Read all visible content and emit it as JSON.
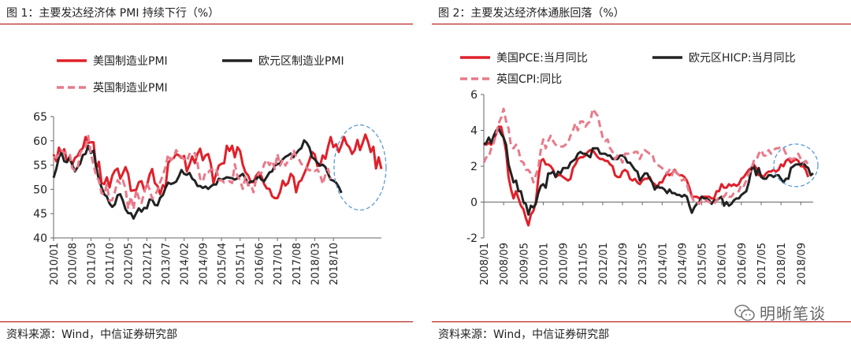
{
  "left": {
    "title": "图 1：主要发达经济体 PMI 持续下行（%）",
    "source": "资料来源：Wind，中信证券研究部"
  },
  "right": {
    "title": "图 2：主要发达经济体通胀回落（%）",
    "source": "资料来源：Wind，中信证券研究部"
  },
  "watermark": {
    "text": "明晰笔谈",
    "icon": "wechat-icon"
  },
  "chart_data": [
    {
      "type": "line",
      "title": "图 1：主要发达经济体 PMI 持续下行（%）",
      "xlabel": "",
      "ylabel": "",
      "ylim": [
        40,
        65
      ],
      "yticks": [
        40,
        45,
        50,
        55,
        60,
        65
      ],
      "x_start": "2010/01",
      "xticks": [
        "2010/01",
        "2010/08",
        "2011/03",
        "2011/10",
        "2012/05",
        "2012/12",
        "2013/07",
        "2014/02",
        "2014/09",
        "2015/04",
        "2015/11",
        "2016/06",
        "2017/01",
        "2017/08",
        "2018/03",
        "2018/10"
      ],
      "legend_position": "top",
      "grid": false,
      "highlight": "dashed ellipse around 2018 segment",
      "series": [
        {
          "name": "美国制造业PMI",
          "color": "#e0202a",
          "style": "solid",
          "values": [
            57.2,
            55.8,
            58.6,
            57.2,
            58.3,
            55.8,
            56.2,
            55.1,
            56.5,
            56.9,
            58.0,
            58.5,
            60.8,
            59.6,
            59.7,
            59.7,
            54.2,
            55.7,
            51.3,
            51.1,
            52.5,
            50.4,
            52.8,
            53.9,
            54.3,
            52.2,
            53.3,
            54.6,
            53.2,
            49.7,
            49.8,
            49.9,
            51.5,
            51.7,
            49.9,
            50.7,
            53.0,
            54.2,
            51.3,
            50.7,
            49.0,
            50.9,
            50.3,
            55.4,
            56.2,
            56.4,
            57.3,
            57.0,
            56.5,
            56.9,
            53.7,
            55.1,
            56.8,
            55.4,
            57.3,
            58.4,
            56.0,
            57.0,
            57.3,
            55.3,
            51.3,
            53.2,
            54.9,
            55.3,
            55.4,
            59.0,
            57.9,
            59.0,
            56.6,
            58.7,
            57.9,
            55.1,
            53.5,
            52.9,
            51.5,
            51.5,
            52.8,
            53.5,
            52.7,
            51.1,
            50.2,
            50.1,
            48.6,
            48.2,
            48.2,
            49.5,
            51.8,
            50.8,
            51.3,
            53.2,
            52.6,
            49.4,
            51.5,
            51.9,
            53.2,
            54.5,
            56.0,
            57.7,
            57.2,
            54.8,
            54.9,
            57.0,
            56.3,
            58.8,
            60.8,
            58.7,
            59.3,
            57.7,
            59.1,
            60.8,
            59.3,
            58.7,
            57.3,
            58.1,
            60.2,
            58.1,
            59.6,
            61.3,
            59.8,
            57.7,
            58.8,
            54.3,
            56.6,
            54.2
          ]
        },
        {
          "name": "欧元区制造业PMI",
          "color": "#222222",
          "style": "solid",
          "values": [
            52.4,
            54.2,
            56.6,
            57.6,
            55.8,
            55.6,
            56.7,
            55.1,
            53.7,
            54.6,
            55.3,
            57.1,
            57.3,
            59.0,
            57.5,
            58.0,
            54.6,
            52.0,
            50.4,
            49.0,
            48.5,
            47.1,
            46.4,
            46.9,
            48.8,
            49.0,
            47.7,
            45.9,
            45.1,
            45.1,
            44.0,
            45.1,
            46.1,
            45.4,
            46.2,
            46.1,
            47.9,
            47.9,
            46.8,
            46.7,
            48.3,
            48.8,
            50.3,
            51.4,
            51.1,
            51.3,
            51.6,
            52.7,
            54.0,
            53.2,
            53.0,
            53.4,
            52.2,
            51.8,
            50.7,
            50.7,
            50.3,
            50.6,
            50.1,
            50.6,
            51.0,
            51.0,
            52.2,
            52.0,
            52.2,
            52.5,
            52.4,
            52.3,
            52.0,
            52.3,
            52.8,
            53.2,
            52.3,
            51.2,
            51.6,
            51.7,
            52.0,
            52.8,
            52.0,
            51.7,
            52.6,
            53.5,
            53.7,
            54.9,
            55.2,
            55.4,
            56.2,
            56.7,
            57.0,
            57.4,
            56.6,
            57.4,
            58.1,
            58.5,
            60.1,
            59.6,
            58.6,
            56.6,
            56.2,
            55.5,
            54.9,
            55.1,
            54.6,
            53.2,
            52.0,
            51.8,
            51.4,
            50.5,
            49.3
          ]
        },
        {
          "name": "英国制造业PMI",
          "color": "#e87a8a",
          "style": "dashed",
          "values": [
            56.7,
            56.5,
            57.2,
            58.0,
            57.5,
            57.6,
            57.5,
            54.4,
            53.9,
            54.3,
            57.5,
            58.3,
            58.8,
            61.0,
            57.3,
            55.1,
            52.8,
            51.8,
            49.2,
            49.0,
            51.0,
            47.7,
            47.8,
            49.5,
            51.9,
            51.2,
            51.9,
            50.2,
            46.0,
            48.5,
            45.9,
            49.9,
            48.2,
            47.2,
            49.3,
            51.4,
            50.0,
            48.1,
            48.8,
            49.8,
            51.5,
            52.9,
            54.6,
            57.2,
            56.0,
            56.5,
            58.1,
            57.2,
            56.7,
            56.2,
            55.8,
            57.3,
            57.0,
            57.5,
            55.4,
            52.2,
            51.6,
            53.6,
            53.5,
            54.1,
            54.1,
            54.4,
            51.9,
            51.9,
            51.4,
            51.5,
            51.7,
            51.3,
            55.2,
            52.7,
            51.9,
            50.1,
            52.6,
            50.8,
            51.0,
            49.4,
            52.1,
            53.3,
            53.4,
            55.2,
            56.1,
            55.0,
            55.9,
            54.2,
            57.3,
            54.9,
            56.1,
            54.9,
            55.9,
            56.0,
            58.2,
            56.7,
            56.3,
            55.2,
            55.1,
            54.4,
            53.9,
            54.2,
            53.8,
            54.1,
            53.1,
            51.1,
            53.1,
            54.2,
            52.1
          ]
        }
      ]
    },
    {
      "type": "line",
      "title": "图 2：主要发达经济体通胀回落（%）",
      "xlabel": "",
      "ylabel": "",
      "ylim": [
        -2,
        6
      ],
      "yticks": [
        -2,
        0,
        2,
        4,
        6
      ],
      "x_start": "2008/01",
      "xticks": [
        "2008/01",
        "2008/09",
        "2009/05",
        "2010/01",
        "2010/09",
        "2011/05",
        "2012/01",
        "2012/09",
        "2013/05",
        "2014/01",
        "2014/09",
        "2015/05",
        "2016/01",
        "2016/09",
        "2017/05",
        "2018/01",
        "2018/09"
      ],
      "legend_position": "top",
      "grid": false,
      "highlight": "dashed ellipse around 2018 segment",
      "series": [
        {
          "name": "美国PCE:当月同比",
          "color": "#e0202a",
          "style": "solid",
          "values": [
            3.3,
            3.2,
            3.3,
            3.2,
            3.5,
            3.8,
            4.2,
            4.2,
            3.6,
            2.8,
            1.4,
            0.7,
            0.2,
            0.6,
            0.2,
            -0.2,
            -0.4,
            -0.9,
            -1.3,
            -0.7,
            -0.5,
            0.0,
            1.3,
            2.3,
            2.4,
            2.1,
            2.1,
            2.0,
            1.8,
            1.4,
            1.5,
            1.5,
            1.4,
            1.3,
            1.2,
            1.3,
            1.9,
            2.1,
            2.4,
            2.5,
            2.5,
            2.6,
            2.8,
            2.9,
            2.9,
            2.7,
            2.5,
            2.4,
            2.4,
            2.3,
            2.3,
            2.1,
            2.0,
            1.5,
            1.4,
            1.4,
            1.7,
            1.8,
            1.7,
            1.3,
            1.2,
            1.3,
            1.1,
            1.0,
            1.2,
            1.3,
            1.3,
            1.4,
            1.1,
            1.0,
            0.8,
            1.1,
            1.1,
            1.4,
            1.6,
            1.5,
            1.6,
            1.8,
            1.6,
            1.5,
            1.5,
            1.4,
            1.2,
            0.8,
            0.3,
            0.3,
            0.3,
            0.2,
            0.3,
            0.3,
            0.3,
            0.3,
            0.2,
            0.2,
            0.6,
            0.6,
            1.0,
            0.8,
            0.8,
            1.0,
            0.9,
            1.0,
            0.9,
            1.0,
            1.3,
            1.4,
            1.6,
            1.8,
            1.9,
            2.1,
            1.9,
            1.5,
            1.5,
            1.4,
            1.6,
            1.7,
            1.7,
            1.8,
            1.7,
            1.8,
            2.1,
            2.0,
            2.3,
            2.4,
            2.2,
            2.3,
            2.4,
            2.3,
            2.0,
            2.0,
            1.8,
            1.4
          ]
        },
        {
          "name": "欧元区HICP:当月同比",
          "color": "#222222",
          "style": "solid",
          "values": [
            3.2,
            3.3,
            3.6,
            3.3,
            3.7,
            4.0,
            4.1,
            3.8,
            3.6,
            3.2,
            2.1,
            1.6,
            1.1,
            1.2,
            0.6,
            0.6,
            0.0,
            -0.1,
            -0.7,
            -0.2,
            -0.3,
            -0.1,
            0.5,
            0.9,
            1.0,
            0.8,
            1.6,
            1.6,
            1.7,
            1.4,
            1.7,
            1.6,
            1.9,
            1.9,
            1.9,
            2.2,
            2.3,
            2.4,
            2.7,
            2.8,
            2.7,
            2.7,
            2.6,
            2.5,
            3.0,
            3.0,
            3.0,
            2.7,
            2.7,
            2.7,
            2.6,
            2.6,
            2.4,
            2.4,
            2.4,
            2.6,
            2.6,
            2.5,
            2.2,
            2.2,
            2.0,
            1.8,
            1.7,
            1.2,
            1.4,
            1.6,
            1.6,
            1.3,
            1.1,
            0.7,
            0.9,
            0.8,
            0.8,
            0.7,
            0.5,
            0.7,
            0.5,
            0.5,
            0.4,
            0.4,
            0.3,
            0.4,
            0.3,
            -0.2,
            -0.6,
            -0.3,
            -0.1,
            0.0,
            0.3,
            0.2,
            0.2,
            0.1,
            -0.1,
            0.1,
            0.1,
            0.2,
            0.3,
            -0.2,
            0.0,
            -0.2,
            -0.1,
            0.1,
            0.2,
            0.2,
            0.4,
            0.5,
            0.6,
            1.1,
            1.8,
            2.0,
            1.5,
            1.9,
            1.4,
            1.3,
            1.3,
            1.5,
            1.5,
            1.4,
            1.5,
            1.5,
            1.3,
            1.1,
            1.3,
            1.3,
            1.9,
            2.0,
            2.1,
            2.1,
            2.1,
            2.2,
            2.0,
            1.9,
            1.5,
            1.6
          ]
        },
        {
          "name": "英国CPI:同比",
          "color": "#e87a8a",
          "style": "dashed",
          "values": [
            2.2,
            2.5,
            2.5,
            3.0,
            3.3,
            3.8,
            4.4,
            4.7,
            5.2,
            4.5,
            4.1,
            3.1,
            3.0,
            3.2,
            2.9,
            2.3,
            2.2,
            1.8,
            1.8,
            1.6,
            1.1,
            1.5,
            1.9,
            2.9,
            3.5,
            3.0,
            3.4,
            3.7,
            3.4,
            3.2,
            3.1,
            3.1,
            3.1,
            3.2,
            3.3,
            3.7,
            4.0,
            4.4,
            4.0,
            4.5,
            4.5,
            4.2,
            4.4,
            4.5,
            5.2,
            5.0,
            4.8,
            4.2,
            3.6,
            3.4,
            3.5,
            3.0,
            2.8,
            2.4,
            2.6,
            2.5,
            2.2,
            2.7,
            2.7,
            2.7,
            2.7,
            2.8,
            2.8,
            2.4,
            2.7,
            2.9,
            2.8,
            2.7,
            2.7,
            2.2,
            2.1,
            2.0,
            1.9,
            1.7,
            1.6,
            1.8,
            1.5,
            1.9,
            1.6,
            1.5,
            1.2,
            1.3,
            1.0,
            0.5,
            0.3,
            0.0,
            0.0,
            -0.1,
            0.1,
            0.0,
            0.1,
            0.0,
            -0.1,
            -0.1,
            0.1,
            0.3,
            0.3,
            0.3,
            0.5,
            0.3,
            0.3,
            0.5,
            0.6,
            0.6,
            1.0,
            0.9,
            1.2,
            1.6,
            1.8,
            2.3,
            2.3,
            2.7,
            2.9,
            2.6,
            2.6,
            2.9,
            2.7,
            2.9,
            3.0,
            3.0,
            3.1,
            3.0,
            2.7,
            2.5,
            2.4,
            2.4,
            2.5,
            2.7,
            2.4,
            2.2,
            2.3,
            2.1
          ]
        }
      ]
    }
  ]
}
